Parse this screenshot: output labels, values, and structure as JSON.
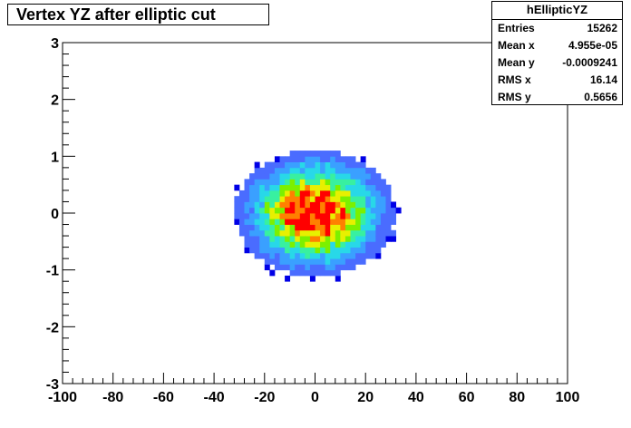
{
  "chart_data": {
    "type": "heatmap",
    "title": "Vertex YZ after elliptic cut",
    "xlabel": "",
    "ylabel": "",
    "xlim": [
      -100,
      100
    ],
    "ylim": [
      -3,
      3
    ],
    "x_ticks": [
      "-100",
      "-80",
      "-60",
      "-40",
      "-20",
      "0",
      "20",
      "40",
      "60",
      "80",
      "100"
    ],
    "y_ticks": [
      "-3",
      "-2",
      "-1",
      "0",
      "1",
      "2",
      "3"
    ],
    "distribution": {
      "center_x": 0,
      "center_y": 0,
      "rms_x": 16.14,
      "rms_y": 0.5656
    },
    "palette": [
      "#0000e6",
      "#4a6cff",
      "#3aa0ff",
      "#28d8e8",
      "#38f0a0",
      "#7cf000",
      "#e8f000",
      "#ff8000",
      "#ff0000"
    ],
    "stats": {
      "name": "hEllipticYZ",
      "entries": {
        "label": "Entries",
        "value": "15262"
      },
      "mean_x": {
        "label": "Mean x",
        "value": "4.955e-05"
      },
      "mean_y": {
        "label": "Mean y",
        "value": "-0.0009241"
      },
      "rms_x": {
        "label": "RMS x",
        "value": "16.14"
      },
      "rms_y": {
        "label": "RMS y",
        "value": "0.5656"
      }
    }
  }
}
